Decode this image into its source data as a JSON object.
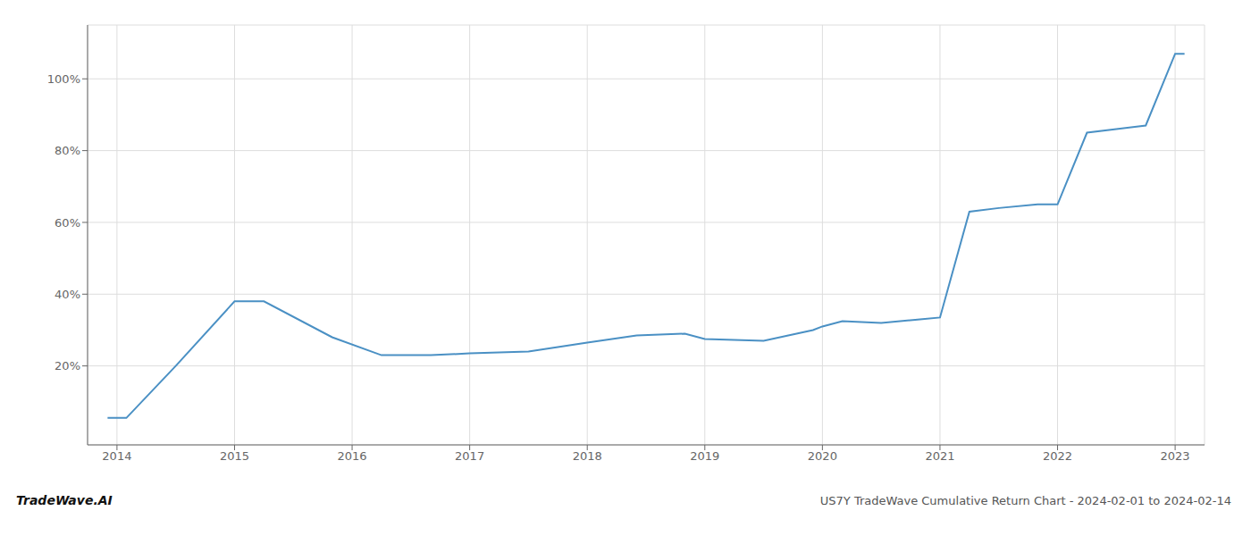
{
  "chart_data": {
    "type": "line",
    "x": [
      2013.92,
      2014.08,
      2014.5,
      2015.0,
      2015.25,
      2015.83,
      2016.25,
      2016.67,
      2017.0,
      2017.5,
      2018.0,
      2018.42,
      2018.83,
      2019.0,
      2019.5,
      2019.92,
      2020.0,
      2020.17,
      2020.5,
      2020.83,
      2021.0,
      2021.25,
      2021.5,
      2021.83,
      2022.0,
      2022.25,
      2022.5,
      2022.75,
      2023.0,
      2023.08
    ],
    "values": [
      5.5,
      5.5,
      20,
      38,
      38,
      28,
      23,
      23,
      23.5,
      24,
      26.5,
      28.5,
      29,
      27.5,
      27,
      30,
      31,
      32.5,
      32,
      33,
      33.5,
      63,
      64,
      65,
      65,
      85,
      86,
      87,
      107,
      107
    ],
    "color": "#4a90c4",
    "xlim": [
      2013.75,
      2023.25
    ],
    "ylim": [
      -2,
      115
    ],
    "xticks": [
      2014,
      2015,
      2016,
      2017,
      2018,
      2019,
      2020,
      2021,
      2022,
      2023
    ],
    "yticks": [
      {
        "value": 20,
        "label": "20%"
      },
      {
        "value": 40,
        "label": "40%"
      },
      {
        "value": 60,
        "label": "60%"
      },
      {
        "value": 80,
        "label": "80%"
      },
      {
        "value": 100,
        "label": "100%"
      }
    ],
    "grid": true,
    "annotations": [
      "TradeWave.AI",
      "US7Y TradeWave Cumulative Return Chart - 2024-02-01 to 2024-02-14"
    ]
  }
}
